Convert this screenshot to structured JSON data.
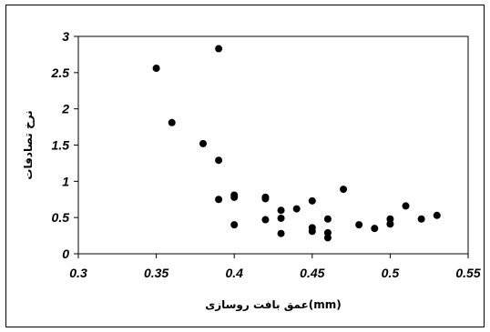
{
  "chart_data": {
    "type": "scatter",
    "title": "",
    "xlabel": "عمق بافت روسازی(mm)",
    "ylabel": "نرخ تصادفات",
    "xlim": [
      0.3,
      0.55
    ],
    "ylim": [
      0,
      3
    ],
    "xticks": [
      "0.3",
      "0.35",
      "0.4",
      "0.45",
      "0.5",
      "0.55"
    ],
    "yticks": [
      "0",
      "0.5",
      "1",
      "1.5",
      "2",
      "2.5",
      "3"
    ],
    "grid": false,
    "legend": "none",
    "marker_color": "#000000",
    "points": [
      {
        "x": 0.35,
        "y": 2.56
      },
      {
        "x": 0.36,
        "y": 1.81
      },
      {
        "x": 0.38,
        "y": 1.52
      },
      {
        "x": 0.39,
        "y": 2.83
      },
      {
        "x": 0.39,
        "y": 1.29
      },
      {
        "x": 0.39,
        "y": 0.75
      },
      {
        "x": 0.4,
        "y": 0.81
      },
      {
        "x": 0.4,
        "y": 0.78
      },
      {
        "x": 0.4,
        "y": 0.4
      },
      {
        "x": 0.42,
        "y": 0.78
      },
      {
        "x": 0.42,
        "y": 0.76
      },
      {
        "x": 0.42,
        "y": 0.47
      },
      {
        "x": 0.43,
        "y": 0.6
      },
      {
        "x": 0.43,
        "y": 0.49
      },
      {
        "x": 0.43,
        "y": 0.28
      },
      {
        "x": 0.44,
        "y": 0.62
      },
      {
        "x": 0.45,
        "y": 0.73
      },
      {
        "x": 0.45,
        "y": 0.36
      },
      {
        "x": 0.45,
        "y": 0.31
      },
      {
        "x": 0.46,
        "y": 0.48
      },
      {
        "x": 0.46,
        "y": 0.29
      },
      {
        "x": 0.46,
        "y": 0.22
      },
      {
        "x": 0.47,
        "y": 0.89
      },
      {
        "x": 0.48,
        "y": 0.4
      },
      {
        "x": 0.49,
        "y": 0.35
      },
      {
        "x": 0.5,
        "y": 0.48
      },
      {
        "x": 0.5,
        "y": 0.41
      },
      {
        "x": 0.51,
        "y": 0.66
      },
      {
        "x": 0.52,
        "y": 0.48
      },
      {
        "x": 0.53,
        "y": 0.53
      }
    ]
  }
}
